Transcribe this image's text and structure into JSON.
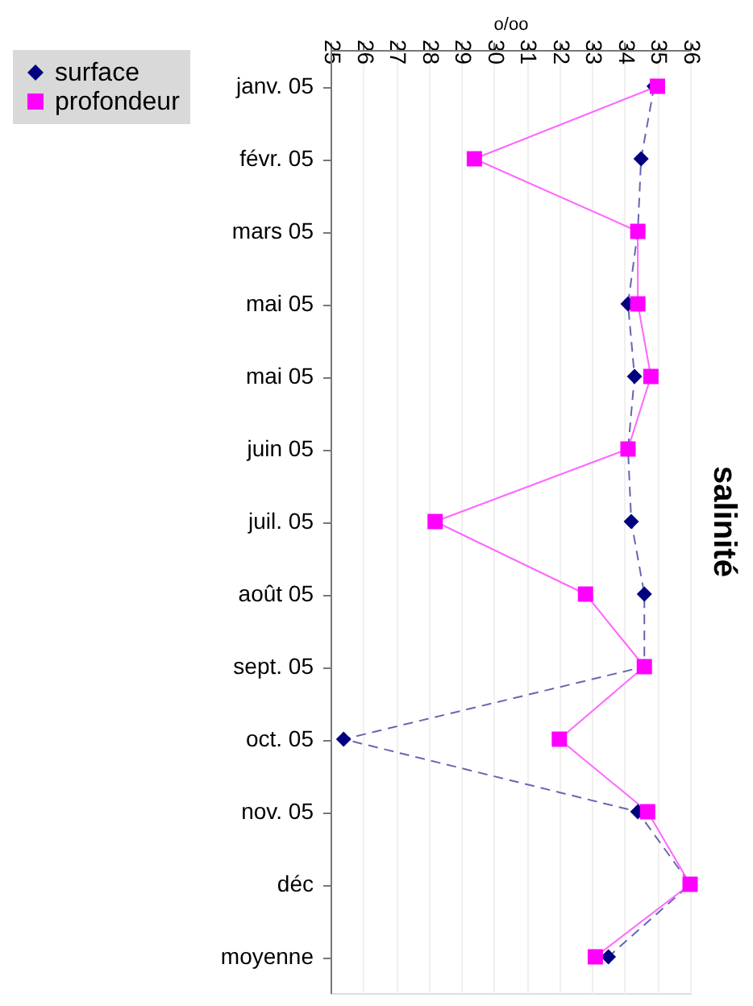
{
  "chart_data": {
    "type": "line",
    "title": "salinité",
    "xlabel": "o/oo",
    "orientation": "horizontal",
    "categories": [
      "janv. 05",
      "févr. 05",
      "mars 05",
      "mai 05",
      "mai 05",
      "juin 05",
      "juil. 05",
      "août 05",
      "sept. 05",
      "oct. 05",
      "nov. 05",
      "déc",
      "moyenne"
    ],
    "series": [
      {
        "name": "surface",
        "color": "#000080",
        "marker": "diamond",
        "line_style": "dashed",
        "values": [
          34.9,
          34.5,
          34.4,
          34.1,
          34.3,
          34.1,
          34.2,
          34.6,
          34.6,
          25.4,
          34.4,
          36.0,
          33.5
        ]
      },
      {
        "name": "profondeur",
        "color": "#ff00ff",
        "marker": "square",
        "line_style": "solid",
        "values": [
          35.0,
          29.4,
          34.4,
          34.4,
          34.8,
          34.1,
          28.2,
          32.8,
          34.6,
          32.0,
          34.7,
          36.0,
          33.1
        ]
      }
    ],
    "xlim": [
      25,
      36
    ],
    "xticks": [
      25,
      26,
      27,
      28,
      29,
      30,
      31,
      32,
      33,
      34,
      35,
      36
    ],
    "grid": "x",
    "legend": "left"
  }
}
